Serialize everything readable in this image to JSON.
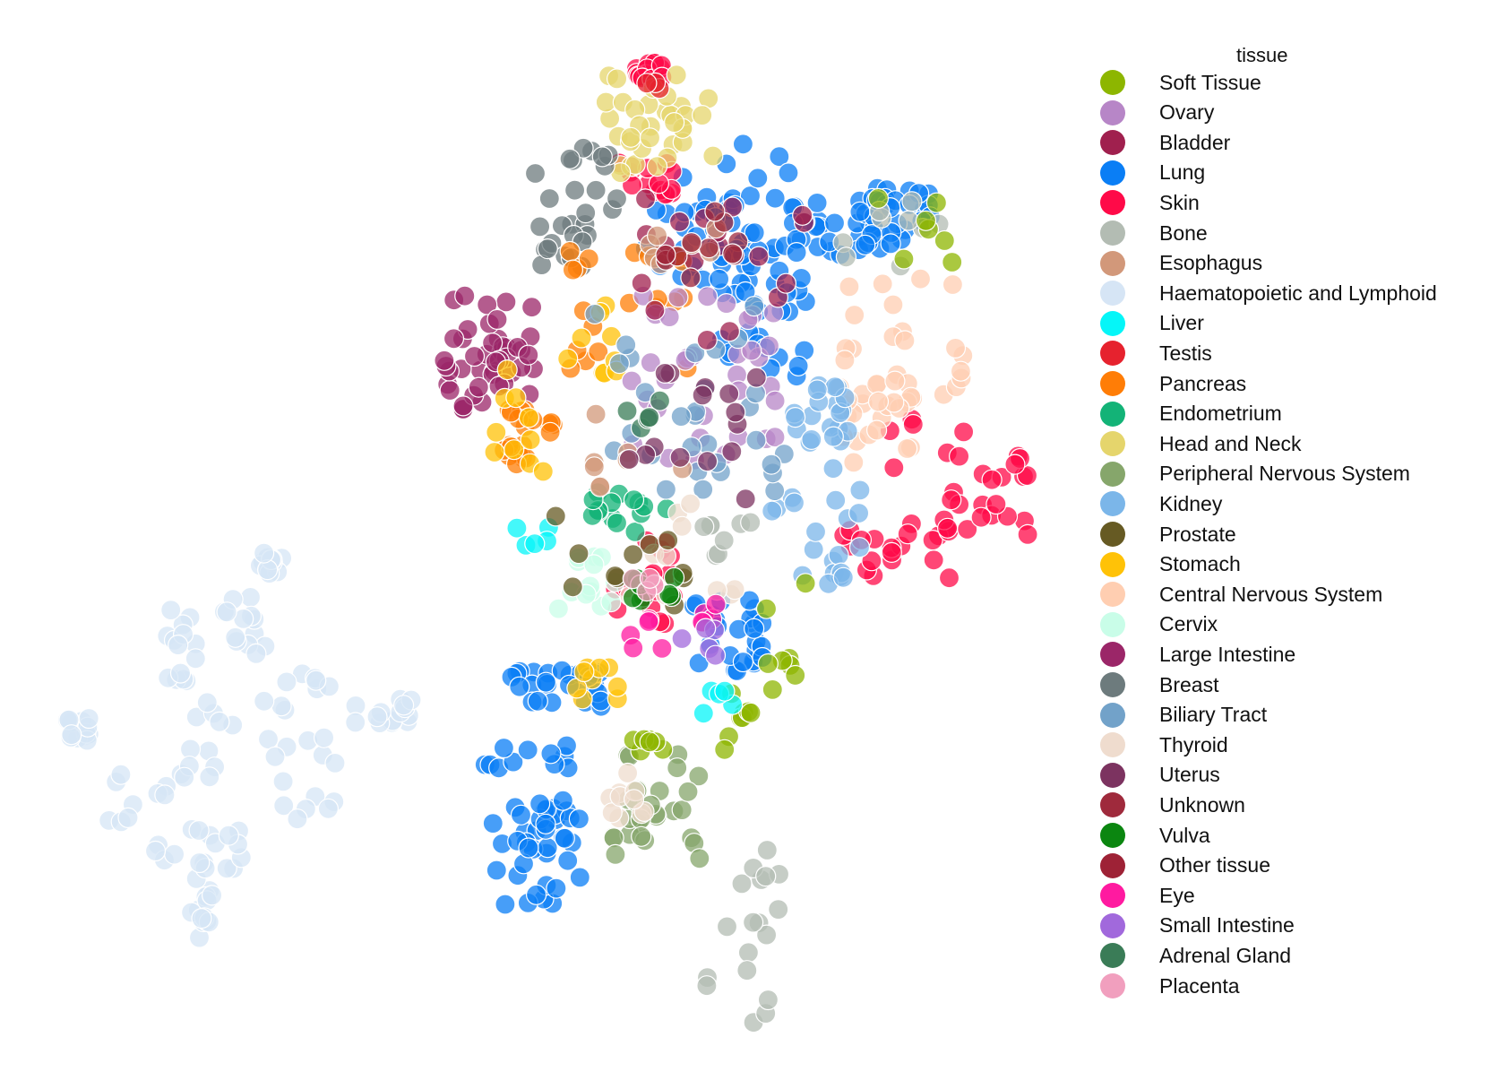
{
  "chart_data": {
    "type": "scatter",
    "title": "",
    "xlabel": "",
    "ylabel": "",
    "grid": false,
    "axes_visible": false,
    "legend": {
      "title": "tissue",
      "placement": "right",
      "entries": [
        {
          "name": "Soft Tissue",
          "color": "#8db600"
        },
        {
          "name": "Ovary",
          "color": "#b786c7"
        },
        {
          "name": "Bladder",
          "color": "#a0204e"
        },
        {
          "name": "Lung",
          "color": "#0a7ef5"
        },
        {
          "name": "Skin",
          "color": "#ff0a48"
        },
        {
          "name": "Bone",
          "color": "#b3bcb3"
        },
        {
          "name": "Esophagus",
          "color": "#d2987a"
        },
        {
          "name": "Haematopoietic and Lymphoid",
          "color": "#d6e5f5"
        },
        {
          "name": "Liver",
          "color": "#05f6f8"
        },
        {
          "name": "Testis",
          "color": "#e6222e"
        },
        {
          "name": "Pancreas",
          "color": "#ff7d06"
        },
        {
          "name": "Endometrium",
          "color": "#13b377"
        },
        {
          "name": "Head and Neck",
          "color": "#e5d56c"
        },
        {
          "name": "Peripheral Nervous System",
          "color": "#86a66b"
        },
        {
          "name": "Kidney",
          "color": "#7bb6e9"
        },
        {
          "name": "Prostate",
          "color": "#665a23"
        },
        {
          "name": "Stomach",
          "color": "#ffc207"
        },
        {
          "name": "Central Nervous System",
          "color": "#ffceb1"
        },
        {
          "name": "Cervix",
          "color": "#c9fde8"
        },
        {
          "name": "Large Intestine",
          "color": "#9b2668"
        },
        {
          "name": "Breast",
          "color": "#6d7b7d"
        },
        {
          "name": "Biliary Tract",
          "color": "#72a2c9"
        },
        {
          "name": "Thyroid",
          "color": "#efdcce"
        },
        {
          "name": "Uterus",
          "color": "#7c3360"
        },
        {
          "name": "Unknown",
          "color": "#9f2a3c"
        },
        {
          "name": "Vulva",
          "color": "#0b8610"
        },
        {
          "name": "Other tissue",
          "color": "#9e2236"
        },
        {
          "name": "Eye",
          "color": "#ff1aa0"
        },
        {
          "name": "Small Intestine",
          "color": "#a169dc"
        },
        {
          "name": "Adrenal Gland",
          "color": "#3a7c57"
        },
        {
          "name": "Placenta",
          "color": "#f19fbe"
        }
      ]
    },
    "series": [
      {
        "name": "Haematopoietic and Lymphoid",
        "color": "#d6e5f5",
        "clusters": [
          [
            [
              70,
              830
            ],
            [
              110,
              800
            ]
          ],
          [
            [
              170,
              680
            ],
            [
              230,
              760
            ]
          ],
          [
            [
              250,
              660
            ],
            [
              300,
              730
            ]
          ],
          [
            [
              190,
              740
            ],
            [
              260,
              880
            ]
          ],
          [
            [
              120,
              860
            ],
            [
              200,
              960
            ]
          ],
          [
            [
              200,
              900
            ],
            [
              290,
              980
            ]
          ],
          [
            [
              210,
              980
            ],
            [
              240,
              1050
            ]
          ],
          [
            [
              290,
              750
            ],
            [
              400,
              830
            ]
          ],
          [
            [
              300,
              820
            ],
            [
              380,
              920
            ]
          ],
          [
            [
              420,
              780
            ],
            [
              460,
              810
            ]
          ],
          [
            [
              290,
              615
            ],
            [
              320,
              640
            ]
          ]
        ],
        "points": 140
      },
      {
        "name": "Lung",
        "color": "#0a7ef5",
        "clusters": [
          [
            [
              760,
              160
            ],
            [
              890,
              300
            ]
          ],
          [
            [
              870,
              220
            ],
            [
              1010,
              290
            ]
          ],
          [
            [
              800,
              280
            ],
            [
              900,
              420
            ]
          ],
          [
            [
              720,
              230
            ],
            [
              880,
              330
            ]
          ],
          [
            [
              540,
              830
            ],
            [
              640,
              1000
            ]
          ],
          [
            [
              560,
              900
            ],
            [
              650,
              1010
            ]
          ],
          [
            [
              770,
              660
            ],
            [
              860,
              760
            ]
          ],
          [
            [
              570,
              740
            ],
            [
              680,
              790
            ]
          ],
          [
            [
              950,
              210
            ],
            [
              1040,
              260
            ]
          ]
        ],
        "points": 230
      },
      {
        "name": "Skin",
        "color": "#ff0a48",
        "clusters": [
          [
            [
              990,
              460
            ],
            [
              1150,
              640
            ]
          ],
          [
            [
              940,
              590
            ],
            [
              1060,
              660
            ]
          ],
          [
            [
              1050,
              510
            ],
            [
              1150,
              600
            ]
          ],
          [
            [
              710,
              70
            ],
            [
              740,
              90
            ]
          ],
          [
            [
              690,
              180
            ],
            [
              770,
              220
            ]
          ],
          [
            [
              680,
              600
            ],
            [
              760,
              700
            ]
          ]
        ],
        "points": 95
      },
      {
        "name": "Large Intestine",
        "color": "#9b2668",
        "clusters": [
          [
            [
              495,
              330
            ],
            [
              600,
              460
            ]
          ]
        ],
        "points": 45
      },
      {
        "name": "Head and Neck",
        "color": "#e5d56c",
        "clusters": [
          [
            [
              665,
              75
            ],
            [
              800,
              180
            ]
          ],
          [
            [
              690,
              100
            ],
            [
              770,
              200
            ]
          ]
        ],
        "points": 35
      },
      {
        "name": "Central Nervous System",
        "color": "#ffceb1",
        "clusters": [
          [
            [
              940,
              310
            ],
            [
              1080,
              460
            ]
          ],
          [
            [
              930,
              420
            ],
            [
              1020,
              520
            ]
          ]
        ],
        "points": 45
      },
      {
        "name": "Breast",
        "color": "#6d7b7d",
        "clusters": [
          [
            [
              575,
              160
            ],
            [
              700,
              240
            ]
          ],
          [
            [
              600,
              250
            ],
            [
              660,
              300
            ]
          ]
        ],
        "points": 28
      },
      {
        "name": "Peripheral Nervous System",
        "color": "#86a66b",
        "clusters": [
          [
            [
              680,
              840
            ],
            [
              800,
              960
            ]
          ],
          [
            [
              700,
              880
            ],
            [
              780,
              950
            ]
          ]
        ],
        "points": 28
      },
      {
        "name": "Bone",
        "color": "#b3bcb3",
        "clusters": [
          [
            [
              780,
              1020
            ],
            [
              860,
              1150
            ]
          ],
          [
            [
              820,
              940
            ],
            [
              870,
              1040
            ]
          ],
          [
            [
              930,
              220
            ],
            [
              1050,
              300
            ]
          ],
          [
            [
              780,
              580
            ],
            [
              850,
              620
            ]
          ]
        ],
        "points": 35
      },
      {
        "name": "Kidney",
        "color": "#7bb6e9",
        "clusters": [
          [
            [
              860,
              520
            ],
            [
              960,
              680
            ]
          ],
          [
            [
              880,
              430
            ],
            [
              950,
              500
            ]
          ]
        ],
        "points": 40
      },
      {
        "name": "Soft Tissue",
        "color": "#8db600",
        "clusters": [
          [
            [
              840,
              650
            ],
            [
              900,
              780
            ]
          ],
          [
            [
              800,
              760
            ],
            [
              850,
              860
            ]
          ],
          [
            [
              980,
              220
            ],
            [
              1080,
              300
            ]
          ],
          [
            [
              700,
              820
            ],
            [
              740,
              840
            ]
          ]
        ],
        "points": 30
      },
      {
        "name": "Pancreas",
        "color": "#ff7d06",
        "clusters": [
          [
            [
              620,
              280
            ],
            [
              770,
              430
            ]
          ],
          [
            [
              560,
              450
            ],
            [
              620,
              520
            ]
          ]
        ],
        "points": 40
      },
      {
        "name": "Stomach",
        "color": "#ffc207",
        "clusters": [
          [
            [
              540,
              410
            ],
            [
              620,
              530
            ]
          ],
          [
            [
              630,
              340
            ],
            [
              690,
              420
            ]
          ],
          [
            [
              640,
              740
            ],
            [
              700,
              780
            ]
          ]
        ],
        "points": 28
      },
      {
        "name": "Ovary",
        "color": "#b786c7",
        "clusters": [
          [
            [
              700,
              330
            ],
            [
              870,
              520
            ]
          ]
        ],
        "points": 35
      },
      {
        "name": "Liver",
        "color": "#05f6f8",
        "clusters": [
          [
            [
              570,
              580
            ],
            [
              630,
              610
            ]
          ],
          [
            [
              780,
              770
            ],
            [
              820,
              800
            ]
          ]
        ],
        "points": 10
      },
      {
        "name": "Cervix",
        "color": "#c9fde8",
        "clusters": [
          [
            [
              620,
              620
            ],
            [
              690,
              680
            ]
          ]
        ],
        "points": 14
      },
      {
        "name": "Endometrium",
        "color": "#13b377",
        "clusters": [
          [
            [
              660,
              540
            ],
            [
              760,
              600
            ]
          ]
        ],
        "points": 15
      },
      {
        "name": "Biliary Tract",
        "color": "#72a2c9",
        "clusters": [
          [
            [
              660,
              330
            ],
            [
              880,
              560
            ]
          ]
        ],
        "points": 30
      },
      {
        "name": "Thyroid",
        "color": "#efdcce",
        "clusters": [
          [
            [
              700,
              560
            ],
            [
              830,
              680
            ]
          ],
          [
            [
              680,
              860
            ],
            [
              720,
              920
            ]
          ]
        ],
        "points": 20
      },
      {
        "name": "Bladder",
        "color": "#a0204e",
        "clusters": [
          [
            [
              700,
              200
            ],
            [
              900,
              380
            ]
          ]
        ],
        "points": 18
      },
      {
        "name": "Esophagus",
        "color": "#d2987a",
        "clusters": [
          [
            [
              660,
              440
            ],
            [
              780,
              560
            ]
          ],
          [
            [
              720,
              250
            ],
            [
              800,
              300
            ]
          ]
        ],
        "points": 15
      },
      {
        "name": "Prostate",
        "color": "#665a23",
        "clusters": [
          [
            [
              620,
              560
            ],
            [
              780,
              680
            ]
          ]
        ],
        "points": 12
      },
      {
        "name": "Uterus",
        "color": "#7c3360",
        "clusters": [
          [
            [
              700,
              400
            ],
            [
              860,
              580
            ]
          ]
        ],
        "points": 15
      },
      {
        "name": "Vulva",
        "color": "#0b8610",
        "clusters": [
          [
            [
              700,
              640
            ],
            [
              760,
              690
            ]
          ]
        ],
        "points": 8
      },
      {
        "name": "Eye",
        "color": "#ff1aa0",
        "clusters": [
          [
            [
              680,
              690
            ],
            [
              740,
              730
            ]
          ],
          [
            [
              780,
              660
            ],
            [
              820,
              700
            ]
          ]
        ],
        "points": 10
      },
      {
        "name": "Small Intestine",
        "color": "#a169dc",
        "clusters": [
          [
            [
              740,
              700
            ],
            [
              800,
              740
            ]
          ]
        ],
        "points": 5
      },
      {
        "name": "Placenta",
        "color": "#f19fbe",
        "clusters": [
          [
            [
              700,
              610
            ],
            [
              740,
              660
            ]
          ]
        ],
        "points": 5
      },
      {
        "name": "Unknown",
        "color": "#9f2a3c",
        "clusters": [
          [
            [
              780,
              230
            ],
            [
              880,
              300
            ]
          ]
        ],
        "points": 6
      },
      {
        "name": "Other tissue",
        "color": "#9e2236",
        "clusters": [
          [
            [
              740,
              270
            ],
            [
              800,
              310
            ]
          ]
        ],
        "points": 5
      },
      {
        "name": "Adrenal Gland",
        "color": "#3a7c57",
        "clusters": [
          [
            [
              700,
              440
            ],
            [
              760,
              480
            ]
          ]
        ],
        "points": 5
      },
      {
        "name": "Testis",
        "color": "#e6222e",
        "clusters": [
          [
            [
              720,
              80
            ],
            [
              740,
              100
            ]
          ]
        ],
        "points": 3
      }
    ]
  }
}
